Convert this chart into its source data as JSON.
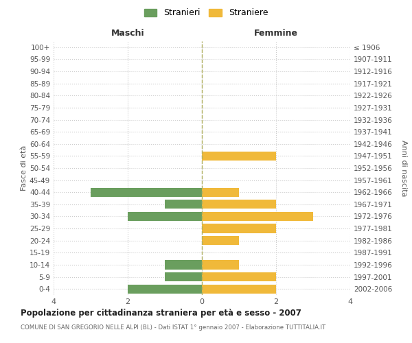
{
  "age_groups": [
    "0-4",
    "5-9",
    "10-14",
    "15-19",
    "20-24",
    "25-29",
    "30-34",
    "35-39",
    "40-44",
    "45-49",
    "50-54",
    "55-59",
    "60-64",
    "65-69",
    "70-74",
    "75-79",
    "80-84",
    "85-89",
    "90-94",
    "95-99",
    "100+"
  ],
  "birth_years": [
    "2002-2006",
    "1997-2001",
    "1992-1996",
    "1987-1991",
    "1982-1986",
    "1977-1981",
    "1972-1976",
    "1967-1971",
    "1962-1966",
    "1957-1961",
    "1952-1956",
    "1947-1951",
    "1942-1946",
    "1937-1941",
    "1932-1936",
    "1927-1931",
    "1922-1926",
    "1917-1921",
    "1912-1916",
    "1907-1911",
    "≤ 1906"
  ],
  "maschi": [
    2,
    1,
    1,
    0,
    0,
    0,
    2,
    1,
    3,
    0,
    0,
    0,
    0,
    0,
    0,
    0,
    0,
    0,
    0,
    0,
    0
  ],
  "femmine": [
    2,
    2,
    1,
    0,
    1,
    2,
    3,
    2,
    1,
    0,
    0,
    2,
    0,
    0,
    0,
    0,
    0,
    0,
    0,
    0,
    0
  ],
  "color_maschi": "#6a9e5e",
  "color_femmine": "#f0b93a",
  "title": "Popolazione per cittadinanza straniera per età e sesso - 2007",
  "subtitle": "COMUNE DI SAN GREGORIO NELLE ALPI (BL) - Dati ISTAT 1° gennaio 2007 - Elaborazione TUTTITALIA.IT",
  "label_maschi": "Stranieri",
  "label_femmine": "Straniere",
  "xlabel_left": "Maschi",
  "xlabel_right": "Femmine",
  "ylabel_left": "Fasce di età",
  "ylabel_right": "Anni di nascita",
  "xlim": 4,
  "bg_color": "#ffffff",
  "grid_color": "#cccccc",
  "bar_height": 0.75
}
